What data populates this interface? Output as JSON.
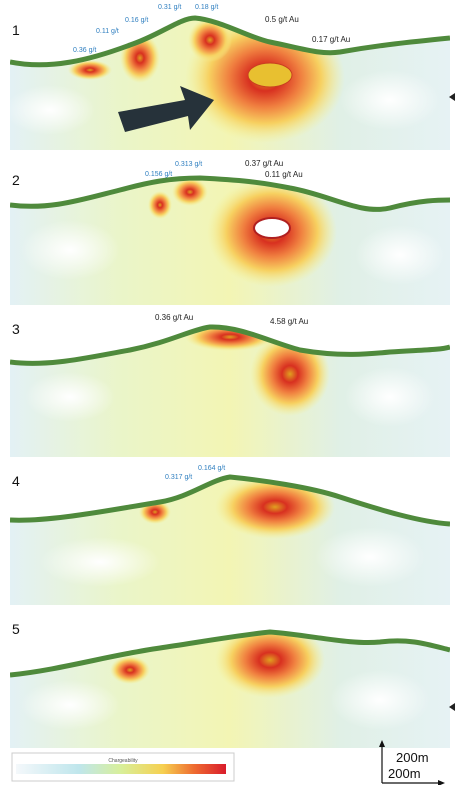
{
  "panels": [
    {
      "number": "1",
      "labels": [
        "0.31 g/t",
        "0.18 g/t",
        "0.16 g/t",
        "0.11 g/t",
        "0.36 g/t",
        "0.5 g/t Au",
        "0.17 g/t Au"
      ]
    },
    {
      "number": "2",
      "labels": [
        "0.313 g/t",
        "0.156 g/t",
        "0.37 g/t Au",
        "0.11 g/t Au"
      ]
    },
    {
      "number": "3",
      "labels": [
        "0.36 g/t Au",
        "4.58 g/t Au"
      ]
    },
    {
      "number": "4",
      "labels": [
        "0.317 g/t",
        "0.164 g/t"
      ]
    },
    {
      "number": "5",
      "labels": []
    }
  ],
  "legend": {
    "title": "Chargeability"
  },
  "scale": {
    "vertical": "200m",
    "horizontal": "200m"
  }
}
